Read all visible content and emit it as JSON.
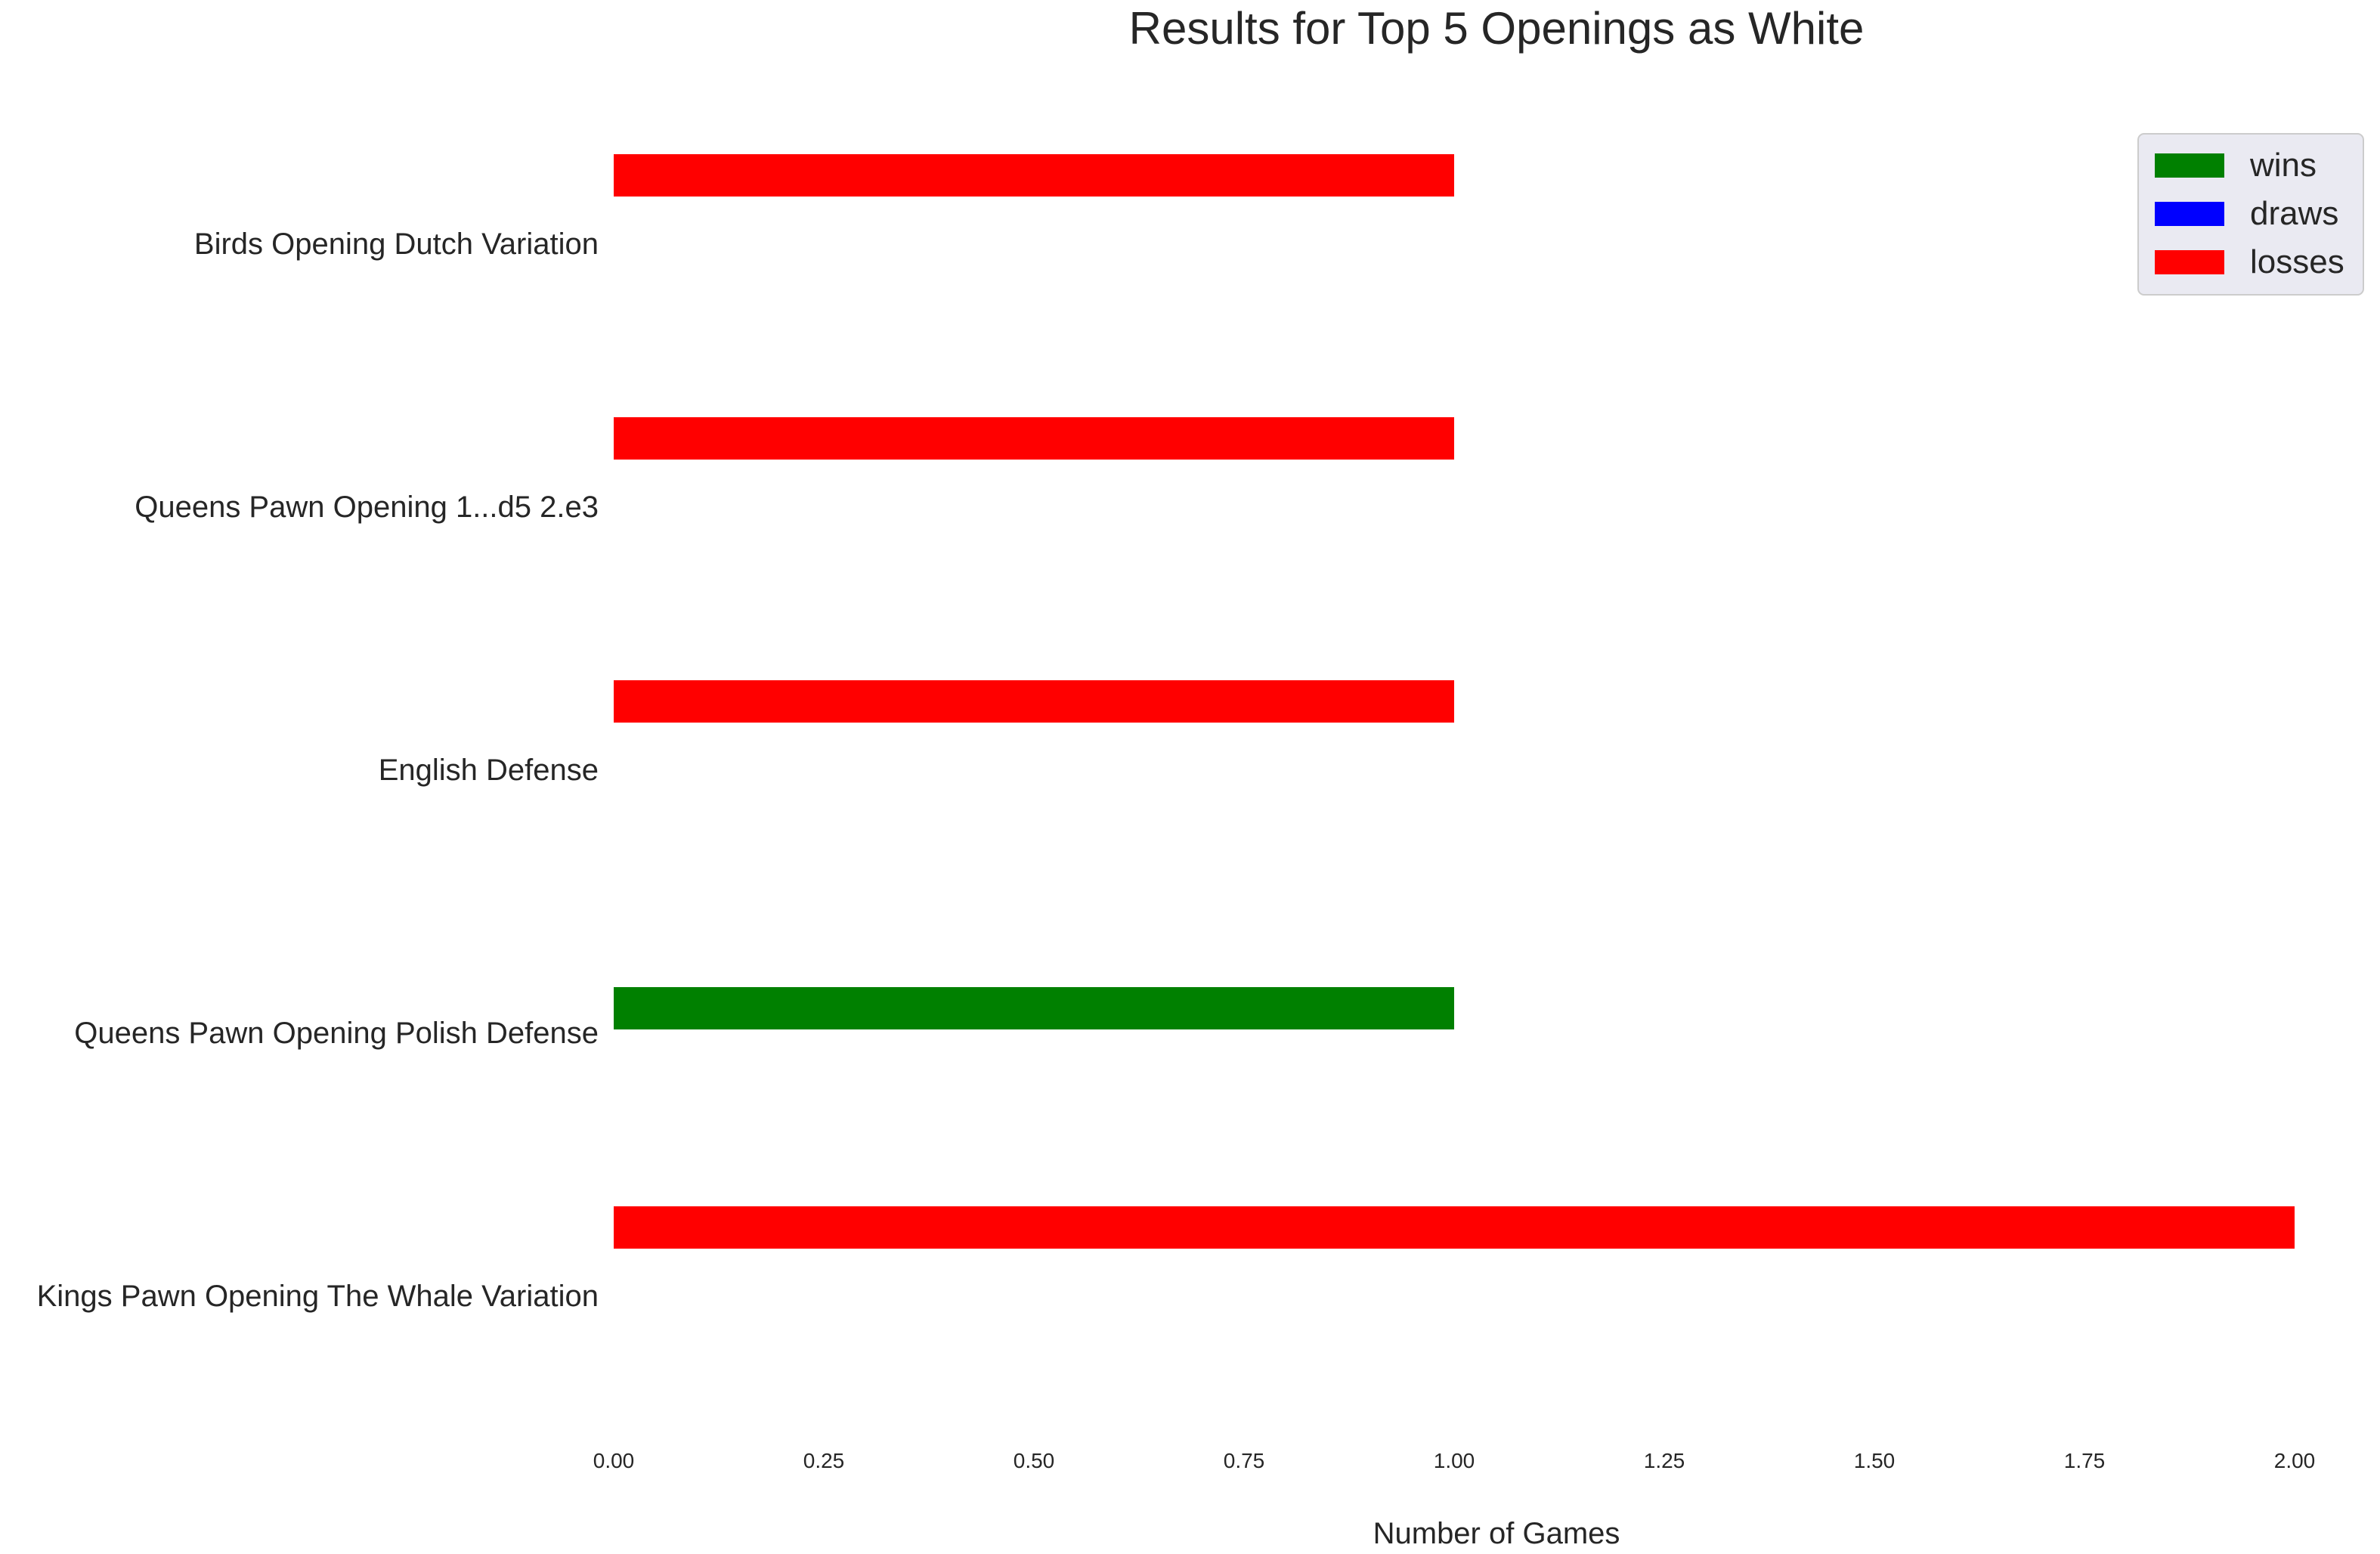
{
  "chart_data": {
    "type": "bar",
    "orientation": "horizontal",
    "title": "Results for Top 5 Openings as White",
    "xlabel": "Number of Games",
    "ylabel": "",
    "xlim": [
      0,
      2
    ],
    "xticks": [
      "0.00",
      "0.25",
      "0.50",
      "0.75",
      "1.00",
      "1.25",
      "1.50",
      "1.75",
      "2.00"
    ],
    "xtick_values": [
      0,
      0.25,
      0.5,
      0.75,
      1.0,
      1.25,
      1.5,
      1.75,
      2.0
    ],
    "grid": false,
    "legend_position": "top-right",
    "categories": [
      "Birds Opening Dutch Variation",
      "Queens Pawn Opening 1...d5 2.e3",
      "English Defense",
      "Queens Pawn Opening Polish Defense",
      "Kings Pawn Opening The Whale Variation"
    ],
    "series": [
      {
        "name": "wins",
        "color": "#008000",
        "values": [
          0,
          0,
          0,
          1,
          0
        ]
      },
      {
        "name": "draws",
        "color": "#0000ff",
        "values": [
          0,
          0,
          0,
          0,
          0
        ]
      },
      {
        "name": "losses",
        "color": "#ff0000",
        "values": [
          1,
          1,
          1,
          0,
          2
        ]
      }
    ]
  }
}
